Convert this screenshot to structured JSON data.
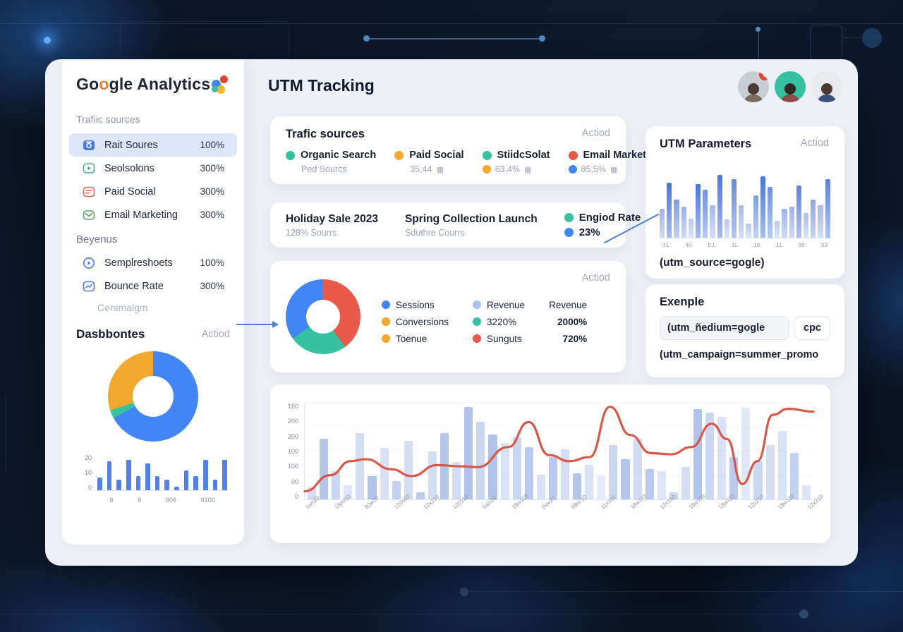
{
  "colors": {
    "blue": "#4285f4",
    "teal": "#35c2a0",
    "amber": "#f2a72e",
    "red": "#e8594a",
    "lightblue": "#a9c2f0"
  },
  "sidebar": {
    "logo": {
      "part1": "Go",
      "part2": "o",
      "part3": "gle",
      "part4": " Analytics"
    },
    "nav_title": "Trafiic sources",
    "items": [
      {
        "label": "Rait Soures",
        "value": "100%"
      },
      {
        "label": "Seolsolons",
        "value": "300%"
      },
      {
        "label": "Paid Social",
        "value": "300%"
      },
      {
        "label": "Email Marketing",
        "value": "300%"
      }
    ],
    "section2": "Beyenus",
    "items2": [
      {
        "label": "Semplreshoets",
        "value": "100%"
      },
      {
        "label": "Bounce Rate",
        "value": "300%"
      }
    ],
    "muted": "Cersmalgm",
    "dash_title": "Dasbbontes",
    "dash_action": "Actiod",
    "donut": {
      "segments": [
        {
          "color": "#4285f4",
          "pct": 67
        },
        {
          "color": "#35c2a0",
          "pct": 3
        },
        {
          "color": "#f2a72e",
          "pct": 30
        }
      ]
    },
    "mini_chart": {
      "max": 20,
      "yticks": [
        "20",
        "10",
        "0"
      ],
      "xticks": [
        "8",
        "8",
        "808",
        "9100"
      ],
      "values": [
        {
          "v": 7
        },
        {
          "v": 16
        },
        {
          "v": 6
        },
        {
          "v": 17
        },
        {
          "v": 8
        },
        {
          "v": 15
        },
        {
          "v": 8
        },
        {
          "v": 6
        },
        {
          "v": 2
        },
        {
          "v": 11
        },
        {
          "v": 8
        },
        {
          "v": 17
        },
        {
          "v": 6
        },
        {
          "v": 17
        }
      ]
    }
  },
  "header": {
    "title": "UTM Tracking",
    "avatar_badge": "0"
  },
  "traffic_card": {
    "title": "Trafic sources",
    "action": "Actiod",
    "legend": [
      {
        "label": "Organic Search",
        "sub": "Ped Sourcs"
      },
      {
        "label": "Paid Social",
        "sub": "35,44"
      },
      {
        "label": "StiidcSolat",
        "sub": "63,4%"
      },
      {
        "label": "Email Marketing",
        "sub": "85,5%"
      }
    ],
    "grid_glyph": "▦"
  },
  "campaign_card": {
    "col1": {
      "title": "Holiday Sale 2023",
      "sub": "128% Sourrs"
    },
    "col2": {
      "title": "Spring Collection Launch",
      "sub": "Sduthre Courrs"
    },
    "col3": {
      "title": "Engiod Rate",
      "sub": "23%"
    }
  },
  "donut_card": {
    "action": "Actiod",
    "donut": {
      "segments": [
        {
          "color": "#e8594a",
          "pct": 40
        },
        {
          "color": "#35c2a0",
          "pct": 25
        },
        {
          "color": "#4285f4",
          "pct": 35
        }
      ]
    },
    "legend_col1": [
      {
        "label": "Sessions"
      },
      {
        "label": "Conversions"
      },
      {
        "label": "Toenue"
      }
    ],
    "legend_col2": [
      {
        "label": "Revenue"
      },
      {
        "label": "3220%"
      },
      {
        "label": "Sunguts"
      }
    ],
    "legend_col3": {
      "header": "Revenue",
      "v1": "2000%",
      "v2": "720%"
    }
  },
  "utm_card": {
    "title": "UTM Parameters",
    "action": "Actiod",
    "caption": "(utm_source=gogle)",
    "chart": {
      "max": 100,
      "xticks": [
        "31",
        "40",
        "E1",
        "J1",
        "10",
        "11",
        "38",
        "33"
      ],
      "values": [
        {
          "v": 38,
          "o": 0.55
        },
        {
          "v": 72,
          "o": 1
        },
        {
          "v": 50,
          "o": 0.7
        },
        {
          "v": 40,
          "o": 0.55
        },
        {
          "v": 25,
          "o": 0.4
        },
        {
          "v": 70,
          "o": 1
        },
        {
          "v": 62,
          "o": 0.8
        },
        {
          "v": 42,
          "o": 0.5
        },
        {
          "v": 82,
          "o": 1
        },
        {
          "v": 24,
          "o": 0.4
        },
        {
          "v": 76,
          "o": 0.85
        },
        {
          "v": 42,
          "o": 0.5
        },
        {
          "v": 18,
          "o": 0.4
        },
        {
          "v": 55,
          "o": 0.7
        },
        {
          "v": 80,
          "o": 1
        },
        {
          "v": 66,
          "o": 0.8
        },
        {
          "v": 22,
          "o": 0.4
        },
        {
          "v": 38,
          "o": 0.55
        },
        {
          "v": 40,
          "o": 0.55
        },
        {
          "v": 68,
          "o": 0.9
        },
        {
          "v": 32,
          "o": 0.45
        },
        {
          "v": 50,
          "o": 0.65
        },
        {
          "v": 42,
          "o": 0.5
        },
        {
          "v": 76,
          "o": 0.9
        }
      ]
    }
  },
  "example_card": {
    "title": "Exenple",
    "input_value": "(utm_ñedium=gogle",
    "button": "cpc",
    "line2": "(utm_campaign=summer_promo"
  },
  "chart_data": {
    "type": "bar+line",
    "title": "",
    "max": 240,
    "yticks": [
      "160",
      "200",
      "200",
      "100",
      "100",
      "00",
      "0"
    ],
    "xticks": [
      "1wn10",
      "18m/10",
      "80w10",
      "120n10",
      "10x110",
      "120110",
      "5wn10",
      "18w110",
      "5sw20",
      "88sc10",
      "11x110",
      "18w110",
      "12x110",
      "18w110",
      "18w110",
      "12x210",
      "18w110",
      "12x310"
    ],
    "bars": [
      {
        "v": 30,
        "o": 0.5
      },
      {
        "v": 150,
        "o": 0.85
      },
      {
        "v": 70,
        "o": 0.6
      },
      {
        "v": 35,
        "o": 0.4
      },
      {
        "v": 165,
        "o": 0.5
      },
      {
        "v": 58,
        "o": 0.9
      },
      {
        "v": 128,
        "o": 0.45
      },
      {
        "v": 45,
        "o": 0.7
      },
      {
        "v": 145,
        "o": 0.5
      },
      {
        "v": 18,
        "o": 0.8
      },
      {
        "v": 120,
        "o": 0.5
      },
      {
        "v": 165,
        "o": 0.85
      },
      {
        "v": 92,
        "o": 0.5
      },
      {
        "v": 230,
        "o": 0.9
      },
      {
        "v": 192,
        "o": 0.6
      },
      {
        "v": 162,
        "o": 0.9
      },
      {
        "v": 140,
        "o": 0.45
      },
      {
        "v": 155,
        "o": 0.6
      },
      {
        "v": 130,
        "o": 0.8
      },
      {
        "v": 62,
        "o": 0.45
      },
      {
        "v": 105,
        "o": 0.8
      },
      {
        "v": 125,
        "o": 0.5
      },
      {
        "v": 65,
        "o": 0.85
      },
      {
        "v": 85,
        "o": 0.45
      },
      {
        "v": 60,
        "o": 0.3
      },
      {
        "v": 135,
        "o": 0.6
      },
      {
        "v": 100,
        "o": 0.85
      },
      {
        "v": 150,
        "o": 0.5
      },
      {
        "v": 75,
        "o": 0.8
      },
      {
        "v": 70,
        "o": 0.4
      },
      {
        "v": 18,
        "o": 0.6
      },
      {
        "v": 80,
        "o": 0.5
      },
      {
        "v": 225,
        "o": 0.9
      },
      {
        "v": 215,
        "o": 0.6
      },
      {
        "v": 205,
        "o": 0.45
      },
      {
        "v": 105,
        "o": 0.8
      },
      {
        "v": 228,
        "o": 0.35
      },
      {
        "v": 95,
        "o": 0.6
      },
      {
        "v": 135,
        "o": 0.5
      },
      {
        "v": 170,
        "o": 0.45
      },
      {
        "v": 115,
        "o": 0.7
      },
      {
        "v": 35,
        "o": 0.4
      }
    ],
    "line": [
      [
        0,
        20
      ],
      [
        0.05,
        60
      ],
      [
        0.09,
        95
      ],
      [
        0.12,
        100
      ],
      [
        0.17,
        75
      ],
      [
        0.21,
        58
      ],
      [
        0.26,
        85
      ],
      [
        0.31,
        82
      ],
      [
        0.34,
        80
      ],
      [
        0.4,
        130
      ],
      [
        0.44,
        192
      ],
      [
        0.48,
        110
      ],
      [
        0.52,
        95
      ],
      [
        0.56,
        105
      ],
      [
        0.6,
        230
      ],
      [
        0.64,
        160
      ],
      [
        0.68,
        115
      ],
      [
        0.72,
        112
      ],
      [
        0.76,
        130
      ],
      [
        0.8,
        188
      ],
      [
        0.83,
        150
      ],
      [
        0.86,
        38
      ],
      [
        0.89,
        95
      ],
      [
        0.92,
        210
      ],
      [
        0.95,
        225
      ],
      [
        1,
        218
      ]
    ],
    "line_color": "#d95747"
  }
}
